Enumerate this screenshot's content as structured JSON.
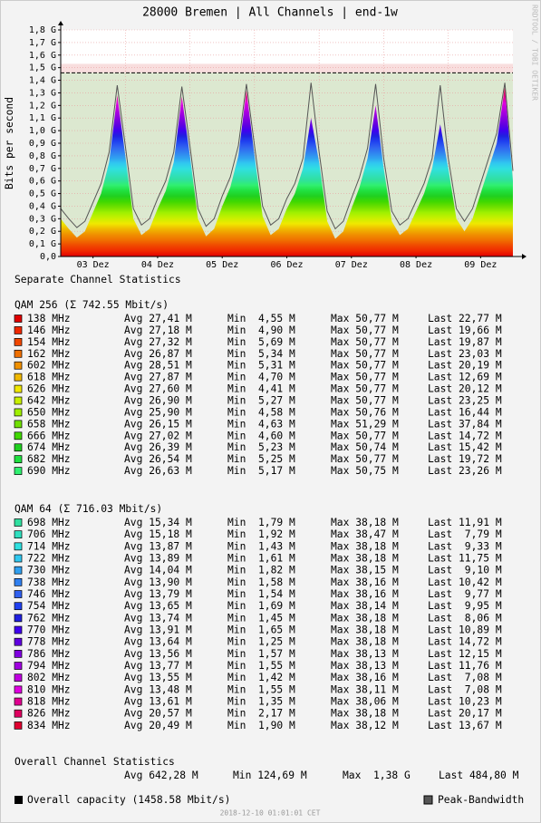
{
  "chart_data": {
    "type": "area",
    "title": "28000 Bremen | All Channels | end-1w",
    "ylabel": "Bits per second",
    "x": [
      0,
      3,
      6,
      9,
      12,
      15,
      18,
      21,
      24,
      27,
      30,
      33,
      36,
      39,
      42,
      45,
      48,
      51,
      54,
      57,
      60,
      63,
      66,
      69,
      72,
      75,
      78,
      81,
      84,
      87,
      90,
      93,
      96,
      99,
      102,
      105,
      108,
      111,
      114,
      117,
      120,
      123,
      126,
      129,
      132,
      135,
      138,
      141,
      144,
      147,
      150,
      153,
      156,
      159,
      162,
      165,
      168
    ],
    "xlim": [
      0,
      168
    ],
    "xticks": [
      {
        "value": 12,
        "label": "03 Dez"
      },
      {
        "value": 36,
        "label": "04 Dez"
      },
      {
        "value": 60,
        "label": "05 Dez"
      },
      {
        "value": 84,
        "label": "06 Dez"
      },
      {
        "value": 108,
        "label": "07 Dez"
      },
      {
        "value": 132,
        "label": "08 Dez"
      },
      {
        "value": 156,
        "label": "09 Dez"
      }
    ],
    "xgrid": [
      24,
      48,
      72,
      96,
      120,
      144
    ],
    "ylim": [
      0,
      1800000000
    ],
    "yticks": [
      {
        "value": 0,
        "label": "0,0"
      },
      {
        "value": 100000000,
        "label": "0,1 G"
      },
      {
        "value": 200000000,
        "label": "0,2 G"
      },
      {
        "value": 300000000,
        "label": "0,3 G"
      },
      {
        "value": 400000000,
        "label": "0,4 G"
      },
      {
        "value": 500000000,
        "label": "0,5 G"
      },
      {
        "value": 600000000,
        "label": "0,6 G"
      },
      {
        "value": 700000000,
        "label": "0,7 G"
      },
      {
        "value": 800000000,
        "label": "0,8 G"
      },
      {
        "value": 900000000,
        "label": "0,9 G"
      },
      {
        "value": 1000000000,
        "label": "1,0 G"
      },
      {
        "value": 1100000000,
        "label": "1,1 G"
      },
      {
        "value": 1200000000,
        "label": "1,2 G"
      },
      {
        "value": 1300000000,
        "label": "1,3 G"
      },
      {
        "value": 1400000000,
        "label": "1,4 G"
      },
      {
        "value": 1500000000,
        "label": "1,5 G"
      },
      {
        "value": 1600000000,
        "label": "1,6 G"
      },
      {
        "value": 1700000000,
        "label": "1,7 G"
      },
      {
        "value": 1800000000,
        "label": "1,8 G"
      }
    ],
    "grid": true,
    "capacity": 1458580000,
    "capacity_label": "Overall capacity (1458.58 Mbit/s)",
    "series": [
      {
        "values": [
          300000000.0,
          220000000.0,
          150000000.0,
          200000000.0,
          350000000.0,
          500000000.0,
          750000000.0,
          1280000000.0,
          800000000.0,
          300000000.0,
          170000000.0,
          220000000.0,
          380000000.0,
          520000000.0,
          750000000.0,
          1270000000.0,
          800000000.0,
          300000000.0,
          160000000.0,
          220000000.0,
          400000000.0,
          550000000.0,
          800000000.0,
          1320000000.0,
          800000000.0,
          320000000.0,
          170000000.0,
          220000000.0,
          380000000.0,
          500000000.0,
          700000000.0,
          1100000000.0,
          750000000.0,
          280000000.0,
          140000000.0,
          200000000.0,
          380000000.0,
          550000000.0,
          780000000.0,
          1200000000.0,
          700000000.0,
          280000000.0,
          170000000.0,
          220000000.0,
          360000000.0,
          500000000.0,
          700000000.0,
          1050000000.0,
          700000000.0,
          300000000.0,
          200000000.0,
          300000000.0,
          500000000.0,
          700000000.0,
          900000000.0,
          1350000000.0,
          600000000.0
        ]
      },
      {
        "name": "Peak-Bandwidth",
        "color": "#555555",
        "values": [
          380000000.0,
          300000000.0,
          230000000.0,
          280000000.0,
          430000000.0,
          580000000.0,
          830000000.0,
          1360000000.0,
          880000000.0,
          380000000.0,
          250000000.0,
          300000000.0,
          460000000.0,
          600000000.0,
          830000000.0,
          1350000000.0,
          880000000.0,
          380000000.0,
          240000000.0,
          300000000.0,
          480000000.0,
          630000000.0,
          880000000.0,
          1370000000.0,
          880000000.0,
          400000000.0,
          250000000.0,
          300000000.0,
          460000000.0,
          580000000.0,
          780000000.0,
          1380000000.0,
          830000000.0,
          360000000.0,
          220000000.0,
          280000000.0,
          460000000.0,
          630000000.0,
          860000000.0,
          1370000000.0,
          780000000.0,
          360000000.0,
          250000000.0,
          300000000.0,
          440000000.0,
          580000000.0,
          780000000.0,
          1360000000.0,
          780000000.0,
          380000000.0,
          280000000.0,
          380000000.0,
          580000000.0,
          780000000.0,
          980000000.0,
          1380000000.0,
          680000000.0
        ]
      }
    ]
  },
  "sections": {
    "separate": "Separate Channel Statistics",
    "overall": "Overall Channel Statistics"
  },
  "groups": [
    {
      "title": "QAM 256 (Σ 742.55 Mbit/s)",
      "rows": [
        {
          "color": "#e00000",
          "cells": [
            "138 MHz",
            "Avg 27,41 M",
            "Min  4,55 M",
            "Max 50,77 M",
            "Last 22,77 M"
          ]
        },
        {
          "color": "#f02800",
          "cells": [
            "146 MHz",
            "Avg 27,18 M",
            "Min  4,90 M",
            "Max 50,77 M",
            "Last 19,66 M"
          ]
        },
        {
          "color": "#f04800",
          "cells": [
            "154 MHz",
            "Avg 27,32 M",
            "Min  5,69 M",
            "Max 50,77 M",
            "Last 19,87 M"
          ]
        },
        {
          "color": "#f07000",
          "cells": [
            "162 MHz",
            "Avg 26,87 M",
            "Min  5,34 M",
            "Max 50,77 M",
            "Last 23,03 M"
          ]
        },
        {
          "color": "#f09000",
          "cells": [
            "602 MHz",
            "Avg 28,51 M",
            "Min  5,31 M",
            "Max 50,77 M",
            "Last 20,19 M"
          ]
        },
        {
          "color": "#f0b800",
          "cells": [
            "618 MHz",
            "Avg 27,87 M",
            "Min  4,70 M",
            "Max 50,77 M",
            "Last 12,69 M"
          ]
        },
        {
          "color": "#f0e800",
          "cells": [
            "626 MHz",
            "Avg 27,60 M",
            "Min  4,41 M",
            "Max 50,77 M",
            "Last 20,12 M"
          ]
        },
        {
          "color": "#c8f000",
          "cells": [
            "642 MHz",
            "Avg 26,90 M",
            "Min  5,27 M",
            "Max 50,77 M",
            "Last 23,25 M"
          ]
        },
        {
          "color": "#a0f000",
          "cells": [
            "650 MHz",
            "Avg 25,90 M",
            "Min  4,58 M",
            "Max 50,76 M",
            "Last 16,44 M"
          ]
        },
        {
          "color": "#70e000",
          "cells": [
            "658 MHz",
            "Avg 26,15 M",
            "Min  4,63 M",
            "Max 51,29 M",
            "Last 37,84 M"
          ]
        },
        {
          "color": "#40d800",
          "cells": [
            "666 MHz",
            "Avg 27,02 M",
            "Min  4,60 M",
            "Max 50,77 M",
            "Last 14,72 M"
          ]
        },
        {
          "color": "#20d020",
          "cells": [
            "674 MHz",
            "Avg 26,39 M",
            "Min  5,23 M",
            "Max 50,74 M",
            "Last 15,42 M"
          ]
        },
        {
          "color": "#20e040",
          "cells": [
            "682 MHz",
            "Avg 26,54 M",
            "Min  5,25 M",
            "Max 50,77 M",
            "Last 19,72 M"
          ]
        },
        {
          "color": "#30f070",
          "cells": [
            "690 MHz",
            "Avg 26,63 M",
            "Min  5,17 M",
            "Max 50,75 M",
            "Last 23,26 M"
          ]
        }
      ]
    },
    {
      "title": "QAM 64 (Σ 716.03 Mbit/s)",
      "rows": [
        {
          "color": "#30e0a0",
          "cells": [
            "698 MHz",
            "Avg 15,34 M",
            "Min  1,79 M",
            "Max 38,18 M",
            "Last 11,91 M"
          ]
        },
        {
          "color": "#30e0c0",
          "cells": [
            "706 MHz",
            "Avg 15,18 M",
            "Min  1,92 M",
            "Max 38,47 M",
            "Last  7,79 M"
          ]
        },
        {
          "color": "#30e0e0",
          "cells": [
            "714 MHz",
            "Avg 13,87 M",
            "Min  1,43 M",
            "Max 38,18 M",
            "Last  9,33 M"
          ]
        },
        {
          "color": "#30c8f0",
          "cells": [
            "722 MHz",
            "Avg 13,89 M",
            "Min  1,61 M",
            "Max 38,18 M",
            "Last 11,75 M"
          ]
        },
        {
          "color": "#30a0f0",
          "cells": [
            "730 MHz",
            "Avg 14,04 M",
            "Min  1,82 M",
            "Max 38,15 M",
            "Last  9,10 M"
          ]
        },
        {
          "color": "#3080f0",
          "cells": [
            "738 MHz",
            "Avg 13,90 M",
            "Min  1,58 M",
            "Max 38,16 M",
            "Last 10,42 M"
          ]
        },
        {
          "color": "#3060f0",
          "cells": [
            "746 MHz",
            "Avg 13,79 M",
            "Min  1,54 M",
            "Max 38,16 M",
            "Last  9,77 M"
          ]
        },
        {
          "color": "#2040f0",
          "cells": [
            "754 MHz",
            "Avg 13,65 M",
            "Min  1,69 M",
            "Max 38,14 M",
            "Last  9,95 M"
          ]
        },
        {
          "color": "#2020e0",
          "cells": [
            "762 MHz",
            "Avg 13,74 M",
            "Min  1,45 M",
            "Max 38,18 M",
            "Last  8,06 M"
          ]
        },
        {
          "color": "#4000f0",
          "cells": [
            "770 MHz",
            "Avg 13,91 M",
            "Min  1,65 M",
            "Max 38,18 M",
            "Last 10,89 M"
          ]
        },
        {
          "color": "#6000e0",
          "cells": [
            "778 MHz",
            "Avg 13,64 M",
            "Min  1,25 M",
            "Max 38,18 M",
            "Last 14,72 M"
          ]
        },
        {
          "color": "#8000e0",
          "cells": [
            "786 MHz",
            "Avg 13,56 M",
            "Min  1,57 M",
            "Max 38,13 M",
            "Last 12,15 M"
          ]
        },
        {
          "color": "#a000e0",
          "cells": [
            "794 MHz",
            "Avg 13,77 M",
            "Min  1,55 M",
            "Max 38,13 M",
            "Last 11,76 M"
          ]
        },
        {
          "color": "#c000e0",
          "cells": [
            "802 MHz",
            "Avg 13,55 M",
            "Min  1,42 M",
            "Max 38,16 M",
            "Last  7,08 M"
          ]
        },
        {
          "color": "#e000e0",
          "cells": [
            "810 MHz",
            "Avg 13,48 M",
            "Min  1,55 M",
            "Max 38,11 M",
            "Last  7,08 M"
          ]
        },
        {
          "color": "#e00090",
          "cells": [
            "818 MHz",
            "Avg 13,61 M",
            "Min  1,35 M",
            "Max 38,06 M",
            "Last 10,23 M"
          ]
        },
        {
          "color": "#e00060",
          "cells": [
            "826 MHz",
            "Avg 20,57 M",
            "Min  2,17 M",
            "Max 38,18 M",
            "Last 20,17 M"
          ]
        },
        {
          "color": "#e00030",
          "cells": [
            "834 MHz",
            "Avg 20,49 M",
            "Min  1,90 M",
            "Max 38,12 M",
            "Last 13,67 M"
          ]
        }
      ]
    }
  ],
  "overall": [
    "Avg 642,28 M",
    "Min 124,69 M",
    "Max  1,38 G",
    "Last 484,80 M"
  ],
  "footer": "2018-12-10 01:01:01 CET",
  "side": "RRDTOOL / TOBI OETIKER"
}
